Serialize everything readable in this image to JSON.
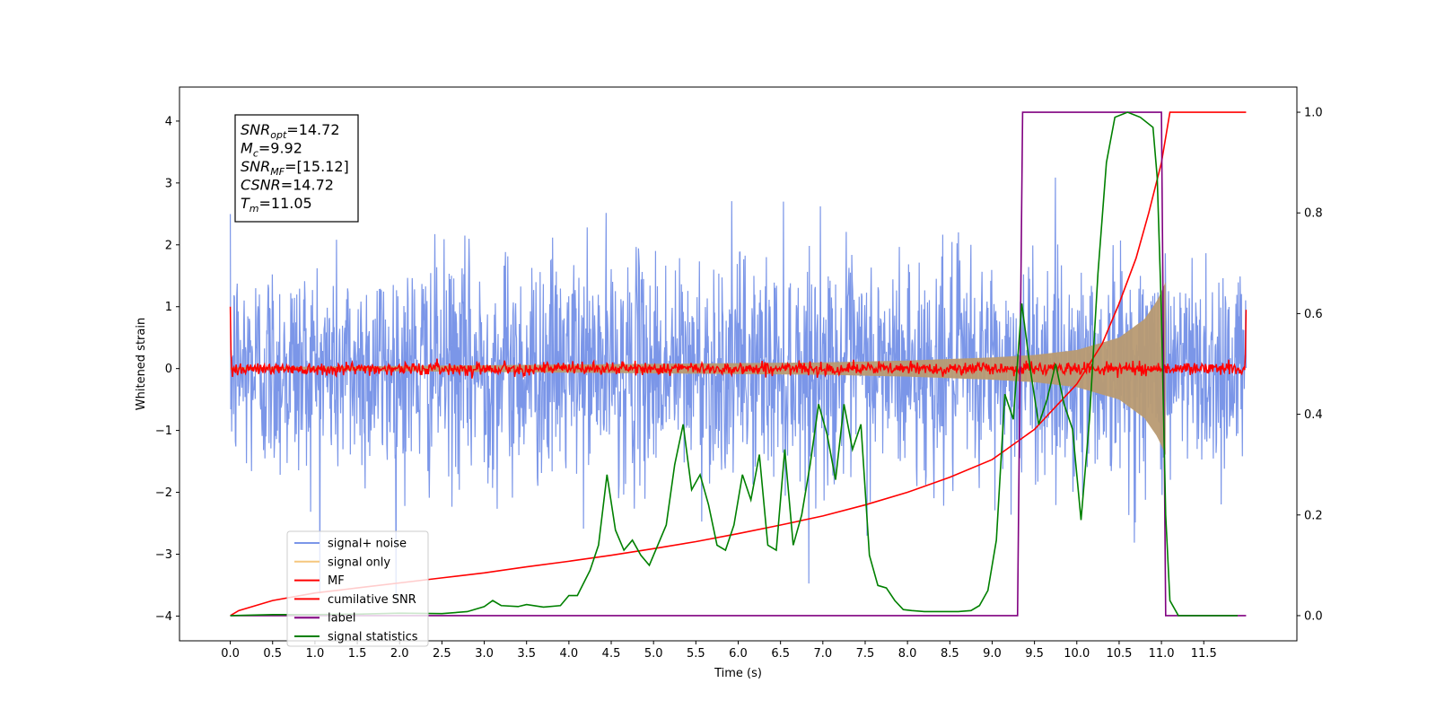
{
  "chart_data": {
    "type": "line",
    "xlabel": "Time (s)",
    "ylabel": "Whitened strain",
    "xlim": [
      -0.6,
      12.6
    ],
    "ylim_left": [
      -4.4,
      4.55
    ],
    "ylim_right": [
      -0.05,
      1.05
    ],
    "xticks": [
      0.0,
      0.5,
      1.0,
      1.5,
      2.0,
      2.5,
      3.0,
      3.5,
      4.0,
      4.5,
      5.0,
      5.5,
      6.0,
      6.5,
      7.0,
      7.5,
      8.0,
      8.5,
      9.0,
      9.5,
      10.0,
      10.5,
      11.0,
      11.5
    ],
    "xtick_labels": [
      "0.0",
      "0.5",
      "1.0",
      "1.5",
      "2.0",
      "2.5",
      "3.0",
      "3.5",
      "4.0",
      "4.5",
      "5.0",
      "5.5",
      "6.0",
      "6.5",
      "7.0",
      "7.5",
      "8.0",
      "8.5",
      "9.0",
      "9.5",
      "10.0",
      "10.5",
      "11.0",
      "11.5"
    ],
    "yticks_left": [
      4,
      3,
      2,
      1,
      0,
      -1,
      -2,
      -3,
      -4
    ],
    "ytick_labels_left": [
      "4",
      "3",
      "2",
      "1",
      "0",
      "−1",
      "−2",
      "−3",
      "−4"
    ],
    "yticks_right": [
      1.0,
      0.8,
      0.6,
      0.4,
      0.2,
      0.0
    ],
    "ytick_labels_right": [
      "1.0",
      "0.8",
      "0.6",
      "0.4",
      "0.2",
      "0.0"
    ],
    "legend_position": "lower-left",
    "grid": false,
    "series": [
      {
        "name": "signal+ noise",
        "color": "#7b96e8",
        "axis": "left",
        "style": "noise",
        "t_start": 0.0,
        "t_end": 12.0,
        "samples": 2200,
        "sigma": 0.9
      },
      {
        "name": "signal only",
        "color": "#f5c77e",
        "axis": "left",
        "style": "chirp",
        "t_start": 0.0,
        "t_end": 11.05,
        "amp_points": [
          [
            0.0,
            0.02
          ],
          [
            7.0,
            0.1
          ],
          [
            8.0,
            0.13
          ],
          [
            9.0,
            0.18
          ],
          [
            9.5,
            0.22
          ],
          [
            10.0,
            0.3
          ],
          [
            10.5,
            0.5
          ],
          [
            10.8,
            0.8
          ],
          [
            10.95,
            1.1
          ],
          [
            11.05,
            1.4
          ]
        ]
      },
      {
        "name": "MF",
        "color": "#ff0000",
        "axis": "left",
        "style": "noise",
        "t_start": 0.0,
        "t_end": 12.0,
        "samples": 1400,
        "sigma": 0.05,
        "start_value": 1.0,
        "end_value": 0.95
      },
      {
        "name": "cumilative SNR",
        "color": "#ff0000",
        "axis": "right",
        "x": [
          0.0,
          0.1,
          0.5,
          1.0,
          1.5,
          2.0,
          2.5,
          3.0,
          3.5,
          4.0,
          4.5,
          5.0,
          5.5,
          6.0,
          6.5,
          7.0,
          7.5,
          8.0,
          8.5,
          9.0,
          9.5,
          10.0,
          10.3,
          10.5,
          10.7,
          10.85,
          11.0,
          11.05,
          11.1,
          12.0
        ],
        "y": [
          0.0,
          0.01,
          0.03,
          0.045,
          0.055,
          0.065,
          0.075,
          0.085,
          0.097,
          0.108,
          0.12,
          0.133,
          0.147,
          0.163,
          0.18,
          0.198,
          0.22,
          0.245,
          0.275,
          0.31,
          0.37,
          0.46,
          0.54,
          0.62,
          0.71,
          0.8,
          0.9,
          0.95,
          1.0,
          1.0
        ]
      },
      {
        "name": "label",
        "color": "#800080",
        "axis": "right",
        "x": [
          0.0,
          9.3,
          9.36,
          11.0,
          11.05,
          12.0
        ],
        "y": [
          0.0,
          0.0,
          1.0,
          1.0,
          0.0,
          0.0
        ]
      },
      {
        "name": "signal statistics",
        "color": "#008000",
        "axis": "right",
        "x": [
          0.0,
          0.5,
          1.0,
          1.5,
          2.0,
          2.5,
          2.8,
          3.0,
          3.1,
          3.2,
          3.4,
          3.5,
          3.7,
          3.9,
          4.0,
          4.1,
          4.25,
          4.35,
          4.45,
          4.55,
          4.65,
          4.75,
          4.85,
          4.95,
          5.05,
          5.15,
          5.25,
          5.35,
          5.45,
          5.55,
          5.65,
          5.75,
          5.85,
          5.95,
          6.05,
          6.15,
          6.25,
          6.35,
          6.45,
          6.55,
          6.65,
          6.75,
          6.85,
          6.95,
          7.05,
          7.15,
          7.25,
          7.35,
          7.45,
          7.55,
          7.65,
          7.75,
          7.85,
          7.95,
          8.05,
          8.2,
          8.4,
          8.6,
          8.75,
          8.85,
          8.95,
          9.05,
          9.15,
          9.25,
          9.35,
          9.45,
          9.55,
          9.65,
          9.75,
          9.85,
          9.95,
          10.05,
          10.15,
          10.25,
          10.35,
          10.45,
          10.6,
          10.75,
          10.9,
          10.95,
          11.0,
          11.05,
          11.1,
          11.2,
          11.5,
          11.9
        ],
        "y": [
          0.0,
          0.002,
          0.002,
          0.003,
          0.005,
          0.004,
          0.008,
          0.018,
          0.03,
          0.02,
          0.018,
          0.022,
          0.017,
          0.02,
          0.04,
          0.04,
          0.09,
          0.14,
          0.28,
          0.17,
          0.13,
          0.15,
          0.12,
          0.1,
          0.14,
          0.18,
          0.3,
          0.38,
          0.25,
          0.28,
          0.22,
          0.14,
          0.13,
          0.18,
          0.28,
          0.23,
          0.32,
          0.14,
          0.13,
          0.33,
          0.14,
          0.2,
          0.3,
          0.42,
          0.36,
          0.27,
          0.42,
          0.33,
          0.38,
          0.12,
          0.06,
          0.055,
          0.03,
          0.012,
          0.01,
          0.008,
          0.008,
          0.008,
          0.01,
          0.02,
          0.05,
          0.15,
          0.44,
          0.39,
          0.62,
          0.49,
          0.38,
          0.43,
          0.5,
          0.42,
          0.37,
          0.19,
          0.39,
          0.68,
          0.9,
          0.99,
          1.0,
          0.99,
          0.97,
          0.87,
          0.6,
          0.2,
          0.03,
          0.0,
          0.0,
          0.0
        ]
      }
    ],
    "annotation": {
      "lines": [
        {
          "symbol": "SNR",
          "sub": "opt",
          "value": "=14.72"
        },
        {
          "symbol": "M",
          "sub": "c",
          "value": "=9.92"
        },
        {
          "symbol": "SNR",
          "sub": "MF",
          "value": "=[15.12]"
        },
        {
          "symbol": "CSNR",
          "sub": "",
          "value": "=14.72"
        },
        {
          "symbol": "T",
          "sub": "m",
          "value": "=11.05"
        }
      ]
    }
  }
}
